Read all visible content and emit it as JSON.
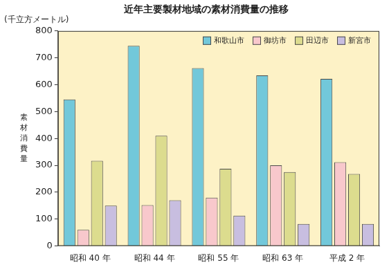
{
  "chart_data": {
    "type": "bar",
    "title": "近年主要製材地域の素材消費量の推移",
    "y_label": "素材消費量",
    "y_unit_label": "(千立方メートル)",
    "categories": [
      "昭和 40 年",
      "昭和 44 年",
      "昭和 55 年",
      "昭和 63 年",
      "平成 2 年"
    ],
    "series": [
      {
        "name": "和歌山市",
        "color": "#72c8da",
        "values": [
          545,
          745,
          662,
          635,
          622
        ]
      },
      {
        "name": "御坊市",
        "color": "#f8c8cc",
        "values": [
          60,
          152,
          180,
          300,
          312
        ]
      },
      {
        "name": "田辺市",
        "color": "#dcdc8e",
        "values": [
          317,
          410,
          287,
          275,
          268
        ]
      },
      {
        "name": "新宮市",
        "color": "#c8bee0",
        "values": [
          150,
          170,
          113,
          82,
          82
        ]
      }
    ],
    "ylim": [
      0,
      800
    ],
    "yticks": [
      0,
      100,
      200,
      300,
      400,
      500,
      600,
      700,
      800
    ],
    "grid": false,
    "legend": "top-right"
  }
}
